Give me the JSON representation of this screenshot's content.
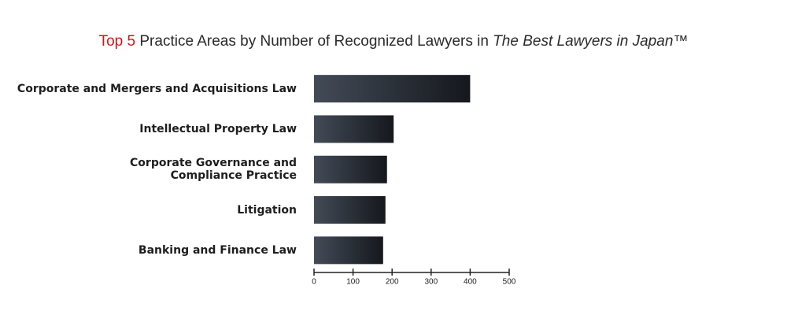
{
  "chart_data": {
    "type": "bar",
    "orientation": "horizontal",
    "title": [
      "Top 5",
      " Practice Areas by Number of Recognized Lawyers in ",
      "The Best Lawyers in Japan",
      "™"
    ],
    "categories": [
      "Corporate and Mergers and Acquisitions Law",
      "Intellectual Property Law",
      "Corporate Governance and\nCompliance Practice",
      "Litigation",
      "Banking and Finance Law"
    ],
    "values": [
      400,
      204,
      187,
      183,
      177
    ],
    "color": "#434b57",
    "xlim": [
      0,
      500
    ],
    "xticks": [
      0,
      100,
      200,
      300,
      400,
      500
    ],
    "grid": false
  }
}
